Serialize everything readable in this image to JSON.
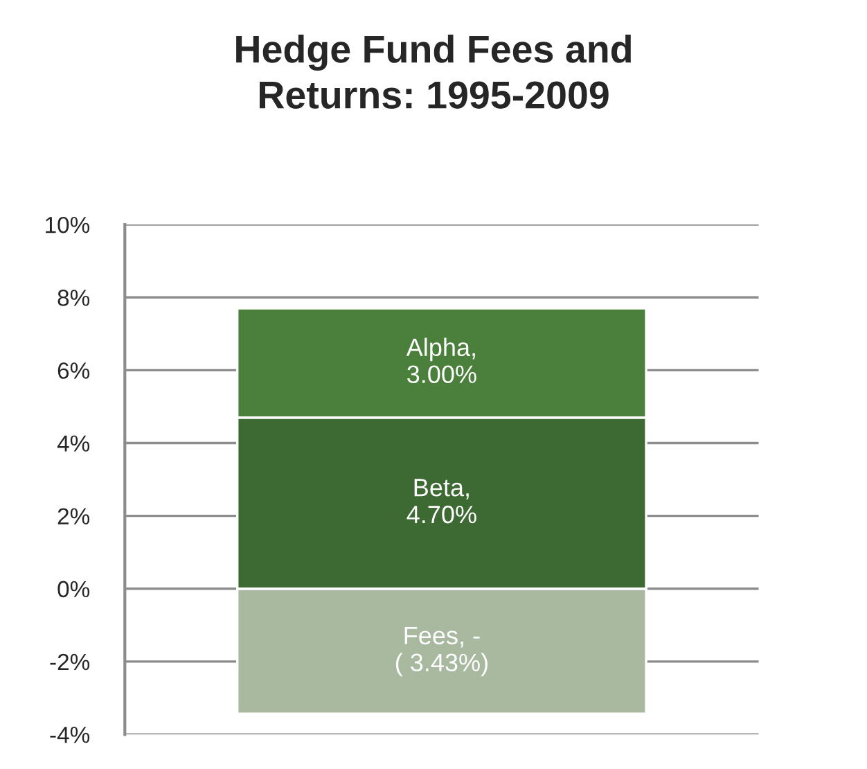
{
  "chart_data": {
    "type": "bar",
    "title": "Hedge Fund Fees and\nReturns: 1995-2009",
    "categories": [
      null
    ],
    "stacked": true,
    "series": [
      {
        "color": "#a9b9a0",
        "values": [
          -3.43
        ],
        "value_labels": [
          "Fees, -\n( 3.43%)"
        ]
      },
      {
        "color": "#3d6a32",
        "values": [
          4.7
        ],
        "value_labels": [
          "Beta,\n4.70%"
        ]
      },
      {
        "color": "#4b7f3c",
        "values": [
          3.0
        ],
        "value_labels": [
          "Alpha,\n3.00%"
        ]
      }
    ],
    "ylim": [
      -4,
      10
    ],
    "yticks": [
      {
        "value": -4,
        "label": "-4%"
      },
      {
        "value": -2,
        "label": "-2%"
      },
      {
        "value": 0,
        "label": "0%"
      },
      {
        "value": 2,
        "label": "2%"
      },
      {
        "value": 4,
        "label": "4%"
      },
      {
        "value": 6,
        "label": "6%"
      },
      {
        "value": 8,
        "label": "8%"
      },
      {
        "value": 10,
        "label": "10%"
      }
    ],
    "grid": "y",
    "legend": false,
    "tick_labels": "y"
  }
}
